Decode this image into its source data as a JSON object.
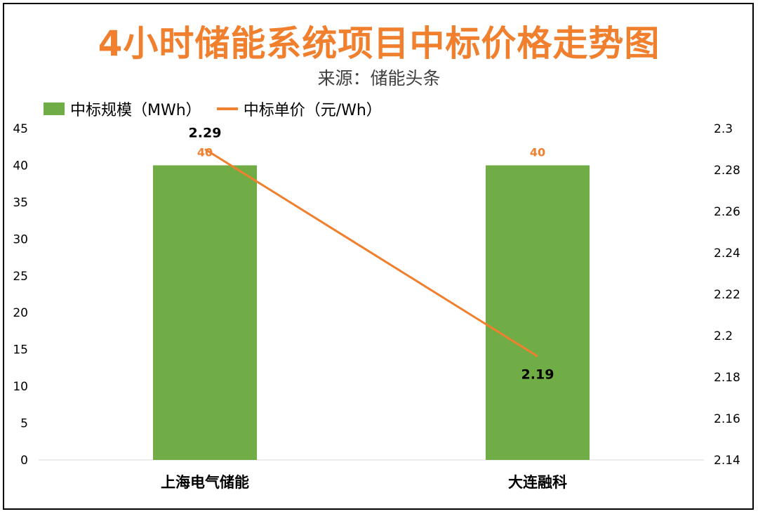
{
  "chart_data": {
    "type": "bar",
    "title": "4小时储能系统项目中标价格走势图",
    "subtitle": "来源：储能头条",
    "categories": [
      "上海电气储能",
      "大连融科"
    ],
    "series": [
      {
        "name": "中标规模（MWh）",
        "type": "bar",
        "axis": "left",
        "values": [
          40,
          40
        ],
        "color": "#70ad47"
      },
      {
        "name": "中标单价（元/Wh）",
        "type": "line",
        "axis": "right",
        "values": [
          2.29,
          2.19
        ],
        "color": "#f07f2e"
      }
    ],
    "y_left": {
      "min": 0,
      "max": 45,
      "ticks": [
        "0",
        "5",
        "10",
        "15",
        "20",
        "25",
        "30",
        "35",
        "40",
        "45"
      ]
    },
    "y_right": {
      "min": 2.14,
      "max": 2.3,
      "ticks": [
        "2.14",
        "2.16",
        "2.18",
        "2.2",
        "2.22",
        "2.24",
        "2.26",
        "2.28",
        "2.3"
      ]
    },
    "bar_labels": [
      "40",
      "40"
    ],
    "line_labels": [
      "2.29",
      "2.19"
    ],
    "legend_position": "top-left",
    "grid": false
  }
}
